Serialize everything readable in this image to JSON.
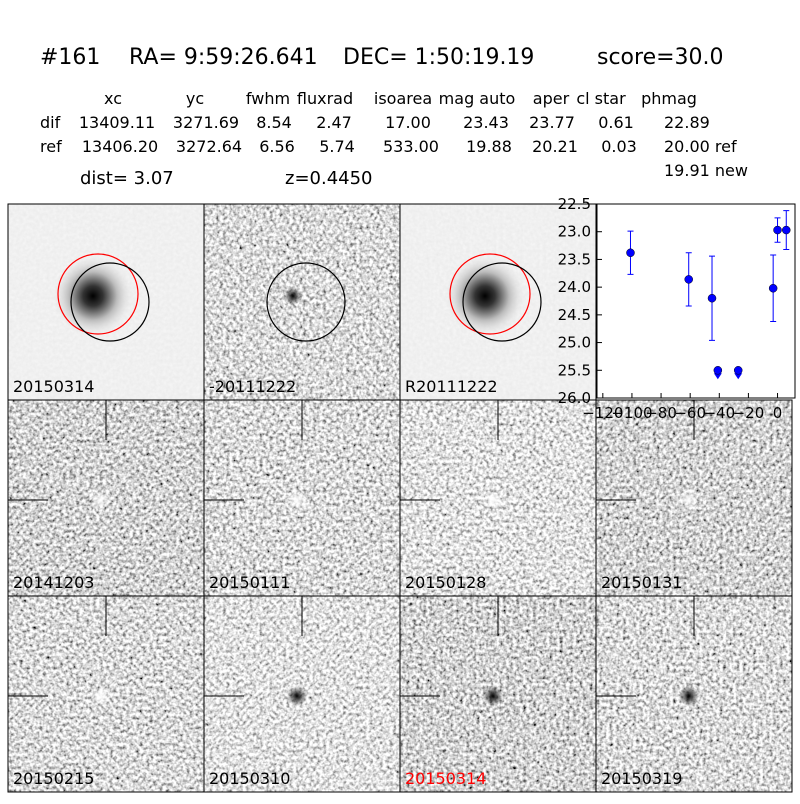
{
  "header": {
    "id": "#161",
    "ra": "RA= 9:59:26.641",
    "dec": "DEC= 1:50:19.19",
    "score": "score=30.0"
  },
  "table": {
    "columns": [
      "xc",
      "yc",
      "fwhm",
      "fluxrad",
      "isoarea",
      "mag auto",
      "aper",
      "cl star",
      "phmag"
    ],
    "rows": [
      [
        "dif",
        "13409.11",
        "3271.69",
        "8.54",
        "2.47",
        "17.00",
        "23.43",
        "23.77",
        "0.61",
        "22.89"
      ],
      [
        "ref",
        "13406.20",
        "3272.64",
        "6.56",
        "5.74",
        "533.00",
        "19.88",
        "20.21",
        "0.03",
        "20.00 ref"
      ]
    ],
    "extra": "19.91 new"
  },
  "dist": "dist=  3.07",
  "z": "z=0.4450",
  "panels": [
    {
      "label": "20150314"
    },
    {
      "label": "-20111222"
    },
    {
      "label": "R20111222"
    },
    {
      "label": "20141203"
    },
    {
      "label": "20150111"
    },
    {
      "label": "20150128"
    },
    {
      "label": "20150131"
    },
    {
      "label": "20150215"
    },
    {
      "label": "20150310"
    },
    {
      "label": "20150314",
      "color": "#ff0000"
    },
    {
      "label": "20150319"
    }
  ],
  "chart_data": {
    "type": "errorbar",
    "xlim": [
      -124,
      12
    ],
    "ylim": [
      26,
      22.5
    ],
    "inverted": true,
    "xticks": [
      {
        "value": -120,
        "label": "−120"
      },
      {
        "value": -100,
        "label": "−100"
      },
      {
        "value": -80,
        "label": "−80"
      },
      {
        "value": -60,
        "label": "−60"
      },
      {
        "value": -40,
        "label": "−40"
      },
      {
        "value": -20,
        "label": "−20"
      },
      0
    ],
    "yticks": [
      22.5,
      {
        "value": 23,
        "label": "23.0"
      },
      23.5,
      {
        "value": 24,
        "label": "24.0"
      },
      24.5,
      {
        "value": 25,
        "label": "25.0"
      },
      25.5,
      {
        "value": 26,
        "label": "26.0"
      }
    ],
    "series": [
      {
        "color": "#0000ff",
        "x": [
          -101,
          -61,
          -45,
          -3,
          0,
          6
        ],
        "values": [
          23.38,
          23.86,
          24.2,
          24.02,
          22.97,
          22.97
        ],
        "errors": [
          0.39,
          0.48,
          0.76,
          0.6,
          0.22,
          0.35
        ]
      },
      {
        "color": "#0000ff",
        "x": [
          -41,
          -27
        ],
        "values": [
          25.5,
          25.5
        ],
        "limit": true
      }
    ]
  }
}
